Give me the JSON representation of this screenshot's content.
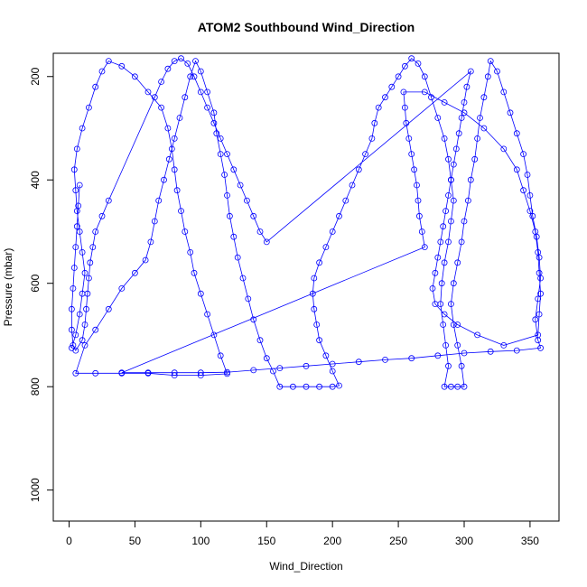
{
  "chart_data": {
    "type": "scatter",
    "title": "ATOM2 Southbound Wind_Direction",
    "xlabel": "Wind_Direction",
    "ylabel": "Pressure (mbar)",
    "xlim": [
      -12,
      372
    ],
    "ylim": [
      1060,
      155
    ],
    "y_reversed": true,
    "x_ticks": [
      0,
      50,
      100,
      150,
      200,
      250,
      300,
      350
    ],
    "y_ticks": [
      200,
      400,
      600,
      800,
      1000
    ],
    "x_tick_labels": [
      "0",
      "50",
      "100",
      "150",
      "200",
      "250",
      "300",
      "350"
    ],
    "y_tick_labels": [
      "200",
      "400",
      "600",
      "800",
      "1000"
    ],
    "marker": "open-circle",
    "connected_by_lines": true,
    "color": "#0000ff",
    "series": [
      {
        "values_note": "",
        "points": [
          [
            2,
            725
          ],
          [
            5,
            700
          ],
          [
            8,
            660
          ],
          [
            10,
            620
          ],
          [
            12,
            580
          ],
          [
            10,
            540
          ],
          [
            8,
            500
          ],
          [
            6,
            460
          ],
          [
            5,
            420
          ],
          [
            4,
            380
          ],
          [
            6,
            340
          ],
          [
            10,
            300
          ],
          [
            15,
            260
          ],
          [
            20,
            220
          ],
          [
            25,
            190
          ],
          [
            30,
            170
          ],
          [
            40,
            180
          ],
          [
            50,
            200
          ],
          [
            60,
            230
          ],
          [
            70,
            260
          ],
          [
            75,
            300
          ],
          [
            78,
            340
          ],
          [
            80,
            380
          ],
          [
            82,
            420
          ],
          [
            85,
            460
          ],
          [
            88,
            500
          ],
          [
            92,
            540
          ],
          [
            95,
            580
          ],
          [
            100,
            620
          ],
          [
            105,
            660
          ],
          [
            110,
            700
          ],
          [
            115,
            740
          ],
          [
            120,
            775
          ],
          [
            100,
            778
          ],
          [
            80,
            778
          ],
          [
            60,
            774
          ],
          [
            40,
            774
          ],
          [
            20,
            774
          ],
          [
            5,
            774
          ],
          [
            12,
            720
          ],
          [
            20,
            690
          ],
          [
            30,
            650
          ],
          [
            40,
            610
          ],
          [
            50,
            580
          ],
          [
            58,
            555
          ],
          [
            62,
            520
          ],
          [
            65,
            480
          ],
          [
            68,
            440
          ],
          [
            72,
            400
          ],
          [
            76,
            360
          ],
          [
            80,
            320
          ],
          [
            84,
            280
          ],
          [
            88,
            240
          ],
          [
            92,
            200
          ],
          [
            96,
            170
          ],
          [
            100,
            190
          ],
          [
            105,
            230
          ],
          [
            110,
            270
          ],
          [
            112,
            310
          ],
          [
            115,
            350
          ],
          [
            118,
            390
          ],
          [
            120,
            430
          ],
          [
            122,
            470
          ],
          [
            125,
            510
          ],
          [
            128,
            550
          ],
          [
            132,
            590
          ],
          [
            136,
            630
          ],
          [
            140,
            670
          ],
          [
            145,
            710
          ],
          [
            150,
            745
          ],
          [
            155,
            770
          ],
          [
            160,
            800
          ],
          [
            170,
            800
          ],
          [
            180,
            800
          ],
          [
            190,
            800
          ],
          [
            200,
            800
          ],
          [
            205,
            798
          ],
          [
            200,
            770
          ],
          [
            195,
            740
          ],
          [
            190,
            710
          ],
          [
            188,
            680
          ],
          [
            186,
            650
          ],
          [
            185,
            620
          ],
          [
            186,
            590
          ],
          [
            190,
            560
          ],
          [
            195,
            530
          ],
          [
            200,
            500
          ],
          [
            205,
            470
          ],
          [
            210,
            440
          ],
          [
            215,
            410
          ],
          [
            220,
            380
          ],
          [
            225,
            350
          ],
          [
            230,
            320
          ],
          [
            232,
            290
          ],
          [
            235,
            260
          ],
          [
            240,
            240
          ],
          [
            245,
            220
          ],
          [
            250,
            200
          ],
          [
            255,
            180
          ],
          [
            260,
            165
          ],
          [
            265,
            175
          ],
          [
            270,
            200
          ],
          [
            275,
            240
          ],
          [
            280,
            280
          ],
          [
            285,
            320
          ],
          [
            288,
            360
          ],
          [
            290,
            400
          ],
          [
            292,
            440
          ],
          [
            290,
            480
          ],
          [
            288,
            520
          ],
          [
            285,
            560
          ],
          [
            283,
            600
          ],
          [
            282,
            640
          ],
          [
            284,
            680
          ],
          [
            286,
            720
          ],
          [
            288,
            760
          ],
          [
            285,
            800
          ],
          [
            290,
            800
          ],
          [
            295,
            800
          ],
          [
            300,
            800
          ],
          [
            298,
            760
          ],
          [
            295,
            720
          ],
          [
            292,
            680
          ],
          [
            290,
            640
          ],
          [
            292,
            600
          ],
          [
            295,
            560
          ],
          [
            298,
            520
          ],
          [
            300,
            480
          ],
          [
            303,
            440
          ],
          [
            305,
            400
          ],
          [
            308,
            360
          ],
          [
            310,
            320
          ],
          [
            312,
            280
          ],
          [
            315,
            240
          ],
          [
            318,
            200
          ],
          [
            320,
            170
          ],
          [
            325,
            190
          ],
          [
            330,
            230
          ],
          [
            335,
            270
          ],
          [
            340,
            310
          ],
          [
            345,
            350
          ],
          [
            348,
            390
          ],
          [
            350,
            430
          ],
          [
            352,
            470
          ],
          [
            355,
            510
          ],
          [
            357,
            550
          ],
          [
            358,
            590
          ],
          [
            356,
            630
          ],
          [
            354,
            670
          ],
          [
            356,
            710
          ],
          [
            358,
            725
          ],
          [
            340,
            730
          ],
          [
            320,
            732
          ],
          [
            300,
            735
          ],
          [
            280,
            740
          ],
          [
            260,
            745
          ],
          [
            240,
            748
          ],
          [
            220,
            752
          ],
          [
            200,
            756
          ],
          [
            180,
            760
          ],
          [
            160,
            764
          ],
          [
            140,
            768
          ],
          [
            120,
            772
          ],
          [
            100,
            773
          ],
          [
            80,
            773
          ],
          [
            60,
            773
          ],
          [
            40,
            773
          ],
          [
            270,
            530
          ],
          [
            268,
            500
          ],
          [
            266,
            470
          ],
          [
            265,
            440
          ],
          [
            264,
            410
          ],
          [
            262,
            380
          ],
          [
            260,
            350
          ],
          [
            258,
            320
          ],
          [
            256,
            290
          ],
          [
            255,
            260
          ],
          [
            254,
            230
          ],
          [
            270,
            230
          ],
          [
            285,
            250
          ],
          [
            300,
            270
          ],
          [
            315,
            300
          ],
          [
            330,
            340
          ],
          [
            340,
            380
          ],
          [
            345,
            420
          ],
          [
            350,
            460
          ],
          [
            354,
            500
          ],
          [
            356,
            540
          ],
          [
            357,
            580
          ],
          [
            358,
            620
          ],
          [
            357,
            660
          ],
          [
            356,
            700
          ],
          [
            330,
            720
          ],
          [
            310,
            700
          ],
          [
            295,
            680
          ],
          [
            285,
            660
          ],
          [
            278,
            640
          ],
          [
            276,
            610
          ],
          [
            278,
            580
          ],
          [
            280,
            550
          ],
          [
            282,
            520
          ],
          [
            284,
            490
          ],
          [
            286,
            460
          ],
          [
            288,
            430
          ],
          [
            290,
            400
          ],
          [
            292,
            370
          ],
          [
            294,
            340
          ],
          [
            296,
            310
          ],
          [
            298,
            280
          ],
          [
            300,
            250
          ],
          [
            302,
            220
          ],
          [
            305,
            190
          ],
          [
            150,
            520
          ],
          [
            145,
            500
          ],
          [
            140,
            470
          ],
          [
            135,
            440
          ],
          [
            130,
            410
          ],
          [
            125,
            380
          ],
          [
            120,
            350
          ],
          [
            115,
            320
          ],
          [
            110,
            290
          ],
          [
            105,
            260
          ],
          [
            100,
            230
          ],
          [
            95,
            200
          ],
          [
            90,
            175
          ],
          [
            85,
            165
          ],
          [
            80,
            170
          ],
          [
            75,
            185
          ],
          [
            70,
            210
          ],
          [
            65,
            240
          ],
          [
            30,
            440
          ],
          [
            25,
            470
          ],
          [
            20,
            500
          ],
          [
            18,
            530
          ],
          [
            16,
            560
          ],
          [
            15,
            590
          ],
          [
            14,
            620
          ],
          [
            13,
            650
          ],
          [
            12,
            680
          ],
          [
            10,
            710
          ],
          [
            5,
            730
          ],
          [
            3,
            720
          ],
          [
            2,
            690
          ],
          [
            2,
            650
          ],
          [
            3,
            610
          ],
          [
            4,
            570
          ],
          [
            5,
            530
          ],
          [
            6,
            490
          ],
          [
            7,
            450
          ],
          [
            8,
            410
          ]
        ]
      }
    ]
  }
}
